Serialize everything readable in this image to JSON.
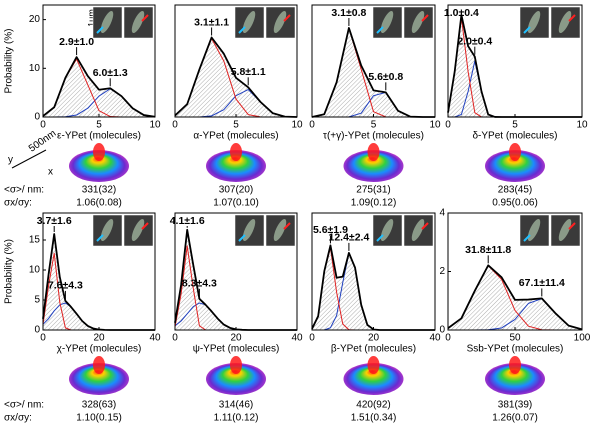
{
  "chart_data": [
    {
      "type": "line",
      "x_label": "ε-YPet (molecules)",
      "y_label": "Probability (%)",
      "hatch": true,
      "x": [
        0,
        1,
        2,
        3,
        4,
        5,
        6,
        7,
        8,
        9,
        10
      ],
      "xlim": [
        0,
        10
      ],
      "xticks": [
        0,
        5,
        10
      ],
      "ylim": [
        0,
        23
      ],
      "yticks": [
        0,
        10,
        20
      ],
      "series": [
        {
          "color": "#000000",
          "values": [
            0.2,
            2.0,
            8.05,
            12.3,
            8.4,
            5.6,
            5.9,
            4.3,
            1.8,
            0.4,
            0.05
          ]
        },
        {
          "color": "#e02020",
          "values": [
            0.2,
            1.97,
            8.0,
            11.9,
            6.6,
            1.3,
            0.1,
            0,
            0,
            0,
            0
          ]
        },
        {
          "color": "#2040c0",
          "values": [
            0,
            0,
            0.05,
            0.4,
            1.8,
            4.3,
            5.8,
            4.3,
            1.8,
            0.4,
            0.05
          ]
        }
      ],
      "annotations": [
        "2.9±1.0",
        "6.0±1.3"
      ],
      "stats": [
        "331(32)",
        "1.06(0.08)"
      ]
    },
    {
      "type": "line",
      "x_label": "α-YPet (molecules)",
      "hatch": true,
      "x": [
        0,
        1,
        2,
        3,
        4,
        5,
        6,
        7,
        8,
        9,
        10
      ],
      "xlim": [
        0,
        10
      ],
      "xticks": [
        0,
        5,
        10
      ],
      "ylim": [
        0,
        20
      ],
      "series": [
        {
          "color": "#000000",
          "values": [
            0.26,
            2.3,
            8.5,
            14.2,
            11.3,
            7.0,
            5.3,
            2.7,
            0.7,
            0.07,
            0
          ]
        },
        {
          "color": "#e02020",
          "values": [
            0.26,
            2.3,
            8.5,
            14,
            10,
            3.2,
            0.43,
            0.03,
            0,
            0,
            0
          ]
        },
        {
          "color": "#2040c0",
          "values": [
            0,
            0,
            0,
            0.2,
            1.3,
            3.8,
            4.9,
            2.7,
            0.7,
            0.07,
            0
          ]
        }
      ],
      "annotations": [
        "3.1±1.1",
        "5.8±1.1"
      ],
      "stats": [
        "307(20)",
        "1.07(0.10)"
      ]
    },
    {
      "type": "line",
      "x_label": "τ(+γ)-YPet (molecules)",
      "hatch": true,
      "x": [
        0,
        1,
        2,
        3,
        4,
        5,
        6,
        7,
        8,
        9,
        10
      ],
      "xlim": [
        0,
        10
      ],
      "xticks": [
        0,
        5,
        10
      ],
      "ylim": [
        0,
        20
      ],
      "series": [
        {
          "color": "#000000",
          "values": [
            0,
            0.5,
            6.2,
            15.9,
            9.2,
            4.75,
            4.4,
            1.1,
            0.06,
            0,
            0
          ]
        },
        {
          "color": "#e02020",
          "values": [
            0,
            0.5,
            6.2,
            15.9,
            8.5,
            0.95,
            0.02,
            0,
            0,
            0,
            0
          ]
        },
        {
          "color": "#2040c0",
          "values": [
            0,
            0,
            0,
            0.02,
            0.68,
            3.8,
            4.4,
            1.1,
            0.06,
            0,
            0
          ]
        }
      ],
      "annotations": [
        "3.1±0.8",
        "5.6±0.8"
      ],
      "stats": [
        "275(31)",
        "1.09(0.12)"
      ]
    },
    {
      "type": "line",
      "x_label": "δ-YPet (molecules)",
      "hatch": true,
      "x": [
        0,
        0.5,
        1,
        1.5,
        2,
        2.5,
        3,
        3.5,
        4,
        5,
        10
      ],
      "xlim": [
        0,
        10
      ],
      "xticks": [
        0,
        5,
        10
      ],
      "ylim": [
        0,
        18
      ],
      "series": [
        {
          "color": "#000000",
          "values": [
            0.7,
            7.3,
            16.4,
            11.4,
            9.7,
            4.1,
            0.4,
            0.01,
            0,
            0,
            0
          ]
        },
        {
          "color": "#e02020",
          "values": [
            0.7,
            7.3,
            16,
            7.3,
            0.7,
            0.01,
            0,
            0,
            0,
            0,
            0
          ]
        },
        {
          "color": "#2040c0",
          "values": [
            0,
            0.01,
            0.4,
            4.1,
            9,
            4.1,
            0.4,
            0.01,
            0,
            0,
            0
          ]
        }
      ],
      "annotations": [
        "1.0±0.4",
        "2.0±0.4"
      ],
      "stats": [
        "283(45)",
        "0.95(0.06)"
      ]
    },
    {
      "type": "line",
      "x_label": "χ-YPet (molecules)",
      "y_label": "Probability (%)",
      "hatch": true,
      "x": [
        0,
        2,
        4,
        6,
        8,
        10,
        12,
        14,
        16,
        18,
        20,
        22,
        24,
        26,
        28,
        30,
        32,
        34,
        36,
        38,
        40
      ],
      "xlim": [
        0,
        40
      ],
      "xticks": [
        0,
        20,
        40
      ],
      "ylim": [
        0,
        19.5
      ],
      "yticks": [
        0,
        5,
        10,
        15
      ],
      "series": [
        {
          "color": "#000000",
          "values": [
            1.85,
            9.3,
            16,
            8.8,
            4.85,
            3.85,
            2.7,
            1.5,
            0.67,
            0.24,
            0.07,
            0.02,
            0,
            0,
            0,
            0,
            0,
            0,
            0,
            0,
            0
          ]
        },
        {
          "color": "#e02020",
          "values": [
            0.9,
            7.4,
            12.8,
            4.6,
            0.35,
            0,
            0,
            0,
            0,
            0,
            0,
            0,
            0,
            0,
            0,
            0,
            0,
            0,
            0,
            0,
            0
          ]
        },
        {
          "color": "#2040c0",
          "values": [
            0.95,
            1.9,
            3.2,
            4.2,
            4.5,
            3.85,
            2.7,
            1.5,
            0.67,
            0.24,
            0.07,
            0.02,
            0,
            0,
            0,
            0,
            0,
            0,
            0,
            0,
            0
          ]
        }
      ],
      "annotations": [
        "3.7±1.6",
        "7.6±4.3"
      ],
      "stats": [
        "328(63)",
        "1.10(0.15)"
      ]
    },
    {
      "type": "line",
      "x_label": "ψ-YPet (molecules)",
      "hatch": true,
      "x": [
        0,
        2,
        4,
        6,
        8,
        10,
        12,
        14,
        16,
        18,
        20,
        22,
        24,
        26,
        28,
        30,
        32,
        34,
        36,
        38,
        40
      ],
      "xlim": [
        0,
        40
      ],
      "xticks": [
        0,
        20,
        40
      ],
      "ylim": [
        0,
        19.5
      ],
      "series": [
        {
          "color": "#000000",
          "values": [
            1.2,
            7.5,
            16.7,
            10.8,
            5.2,
            4.22,
            3.1,
            1.9,
            0.9,
            0.36,
            0.11,
            0.03,
            0,
            0,
            0,
            0,
            0,
            0,
            0,
            0,
            0
          ]
        },
        {
          "color": "#e02020",
          "values": [
            0.5,
            6,
            14,
            6.9,
            0.7,
            0.02,
            0,
            0,
            0,
            0,
            0,
            0,
            0,
            0,
            0,
            0,
            0,
            0,
            0,
            0,
            0
          ]
        },
        {
          "color": "#2040c0",
          "values": [
            0.7,
            1.5,
            2.7,
            3.9,
            4.5,
            4.2,
            3.1,
            1.9,
            0.9,
            0.36,
            0.11,
            0.03,
            0,
            0,
            0,
            0,
            0,
            0,
            0,
            0,
            0
          ]
        }
      ],
      "annotations": [
        "4.1±1.6",
        "8.3±4.3"
      ],
      "stats": [
        "314(46)",
        "1.11(0.12)"
      ]
    },
    {
      "type": "line",
      "x_label": "β-YPet (molecules)",
      "hatch": true,
      "x": [
        0,
        2,
        4,
        6,
        8,
        10,
        12,
        14,
        16,
        18,
        20,
        22,
        24,
        26,
        28,
        30,
        32,
        34,
        36,
        38,
        40
      ],
      "xlim": [
        0,
        40
      ],
      "xticks": [
        0,
        20,
        40
      ],
      "ylim": [
        0,
        19.5
      ],
      "series": [
        {
          "color": "#000000",
          "values": [
            0.2,
            2.3,
            9.8,
            14.1,
            8.7,
            8.9,
            12.85,
            10.4,
            4.2,
            0.85,
            0.09,
            0,
            0,
            0,
            0,
            0,
            0,
            0,
            0,
            0,
            0
          ]
        },
        {
          "color": "#e02020",
          "values": [
            0.2,
            2.3,
            9.8,
            13.7,
            6.3,
            1,
            0.05,
            0,
            0,
            0,
            0,
            0,
            0,
            0,
            0,
            0,
            0,
            0,
            0,
            0,
            0
          ]
        },
        {
          "color": "#2040c0",
          "values": [
            0,
            0,
            0,
            0.37,
            2.4,
            7.9,
            12.8,
            10.4,
            4.2,
            0.85,
            0.09,
            0,
            0,
            0,
            0,
            0,
            0,
            0,
            0,
            0,
            0
          ]
        }
      ],
      "annotations": [
        "5.6±1.9",
        "12.4±2.4"
      ],
      "stats": [
        "420(92)",
        "1.51(0.34)"
      ]
    },
    {
      "type": "line",
      "x_label": "Ssb-YPet (molecules)",
      "hatch": true,
      "x": [
        0,
        10,
        20,
        30,
        40,
        50,
        60,
        70,
        80,
        90,
        100
      ],
      "xlim": [
        0,
        100
      ],
      "xticks": [
        0,
        50,
        100
      ],
      "ylim": [
        0,
        4
      ],
      "yticks": [
        0,
        2,
        4
      ],
      "series": [
        {
          "color": "#000000",
          "values": [
            0.06,
            0.4,
            1.34,
            2.21,
            1.8,
            1.03,
            1.04,
            1.08,
            0.58,
            0.15,
            0.02
          ]
        },
        {
          "color": "#e02020",
          "values": [
            0.06,
            0.4,
            1.34,
            2.2,
            1.73,
            0.67,
            0.13,
            0.01,
            0,
            0,
            0
          ]
        },
        {
          "color": "#2040c0",
          "values": [
            0,
            0,
            0,
            0.01,
            0.07,
            0.36,
            0.91,
            1.07,
            0.58,
            0.15,
            0.02
          ]
        }
      ],
      "annotations": [
        "31.8±11.8",
        "67.1±11.4"
      ],
      "stats": [
        "381(39)",
        "1.26(0.07)"
      ]
    }
  ],
  "stat_labels": [
    "<σ>/ nm:",
    "σx/σy:"
  ],
  "scale_labels": {
    "surface": "500nm",
    "image": "1μm",
    "x": "x",
    "y": "y"
  }
}
